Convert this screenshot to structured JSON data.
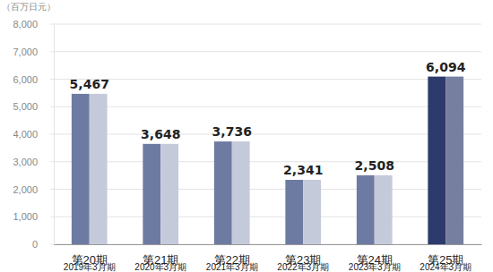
{
  "chart_data": {
    "type": "bar",
    "y_label": "（百万日元）",
    "categories": [
      "第20期\n2019年3月期",
      "第21期\n2020年3月期",
      "第22期\n2021年3月期",
      "第23期\n2022年3月期",
      "第24期\n2023年3月期",
      "第25期\n2024年3月期"
    ],
    "values": [
      5467,
      3648,
      3736,
      2341,
      2508,
      6094
    ],
    "value_labels": [
      "5,467",
      "3,648",
      "3,736",
      "2,341",
      "2,508",
      "6,094"
    ],
    "colors": [
      "#6d7ba2",
      "#6d7ba2",
      "#6d7ba2",
      "#6d7ba2",
      "#6d7ba2",
      "#2c3a6c"
    ],
    "data_labels": true,
    "grid": true,
    "ylim": [
      0,
      8000
    ],
    "yticks": [
      0,
      {
        "value": 1000,
        "label": "1,000"
      },
      {
        "value": 2000,
        "label": "2,000"
      },
      {
        "value": 3000,
        "label": "3,000"
      },
      {
        "value": 4000,
        "label": "4,000"
      },
      {
        "value": 5000,
        "label": "5,000"
      },
      {
        "value": 6000,
        "label": "6,000"
      },
      {
        "value": 7000,
        "label": "7,000"
      },
      {
        "value": 8000,
        "label": "8,000"
      }
    ]
  }
}
